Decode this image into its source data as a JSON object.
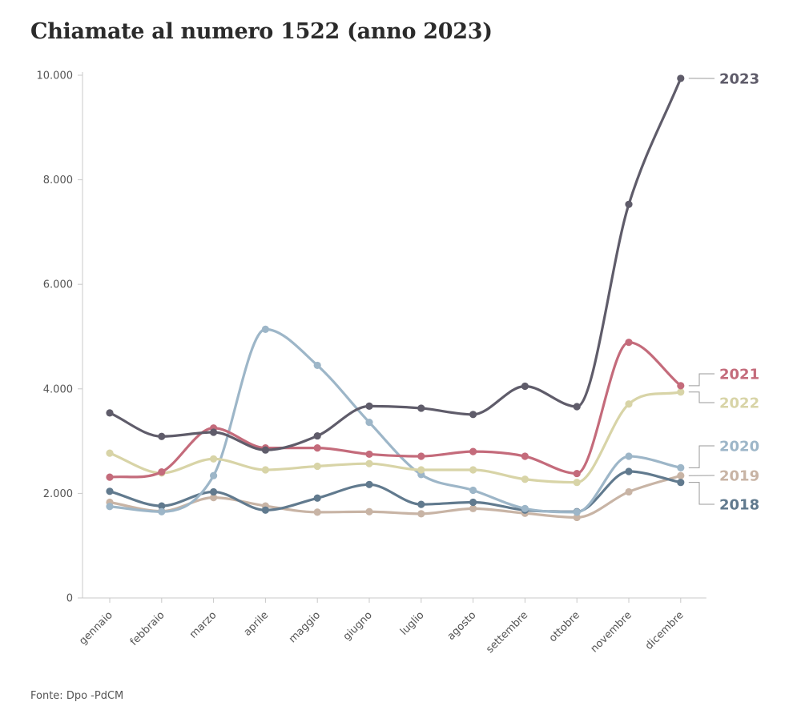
{
  "chart_data": {
    "type": "line",
    "title": "Chiamate al numero 1522 (anno 2023)",
    "source": "Fonte: Dpo -PdCM",
    "categories": [
      "gennaio",
      "febbraio",
      "marzo",
      "aprile",
      "maggio",
      "giugno",
      "luglio",
      "agosto",
      "settembre",
      "ottobre",
      "novembre",
      "dicembre"
    ],
    "y_ticks": [
      {
        "value": 0,
        "label": "0"
      },
      {
        "value": 2000,
        "label": "2.000"
      },
      {
        "value": 4000,
        "label": "4.000"
      },
      {
        "value": 6000,
        "label": "6.000"
      },
      {
        "value": 8000,
        "label": "8.000"
      },
      {
        "value": 10000,
        "label": "10.000"
      }
    ],
    "ylim": [
      0,
      10000
    ],
    "grid": false,
    "series": [
      {
        "name": "2019",
        "color": "#c8b4a5",
        "values": [
          1830,
          1660,
          1920,
          1760,
          1640,
          1650,
          1610,
          1710,
          1620,
          1540,
          2030,
          2340
        ]
      },
      {
        "name": "2018",
        "color": "#617a8e",
        "values": [
          2040,
          1760,
          2030,
          1680,
          1910,
          2170,
          1790,
          1830,
          1680,
          1650,
          2420,
          2210
        ]
      },
      {
        "name": "2020",
        "color": "#9db6c8",
        "values": [
          1750,
          1650,
          2340,
          5140,
          4450,
          3360,
          2360,
          2060,
          1710,
          1640,
          2710,
          2490
        ]
      },
      {
        "name": "2022",
        "color": "#d8d4a7",
        "values": [
          2770,
          2390,
          2660,
          2450,
          2520,
          2570,
          2450,
          2450,
          2270,
          2210,
          3710,
          3940
        ]
      },
      {
        "name": "2021",
        "color": "#c46b7b",
        "values": [
          2310,
          2410,
          3250,
          2870,
          2870,
          2750,
          2710,
          2800,
          2710,
          2380,
          4890,
          4060
        ]
      },
      {
        "name": "2023",
        "color": "#5f5c6a",
        "values": [
          3540,
          3090,
          3170,
          2830,
          3100,
          3670,
          3630,
          3510,
          4050,
          3660,
          7530,
          9940
        ]
      }
    ],
    "end_labels": [
      {
        "name": "2023",
        "color": "#5f5c6a"
      },
      {
        "name": "2021",
        "color": "#c46b7b"
      },
      {
        "name": "2022",
        "color": "#d8d4a7"
      },
      {
        "name": "2020",
        "color": "#9db6c8"
      },
      {
        "name": "2019",
        "color": "#c8b4a5"
      },
      {
        "name": "2018",
        "color": "#617a8e"
      }
    ]
  }
}
